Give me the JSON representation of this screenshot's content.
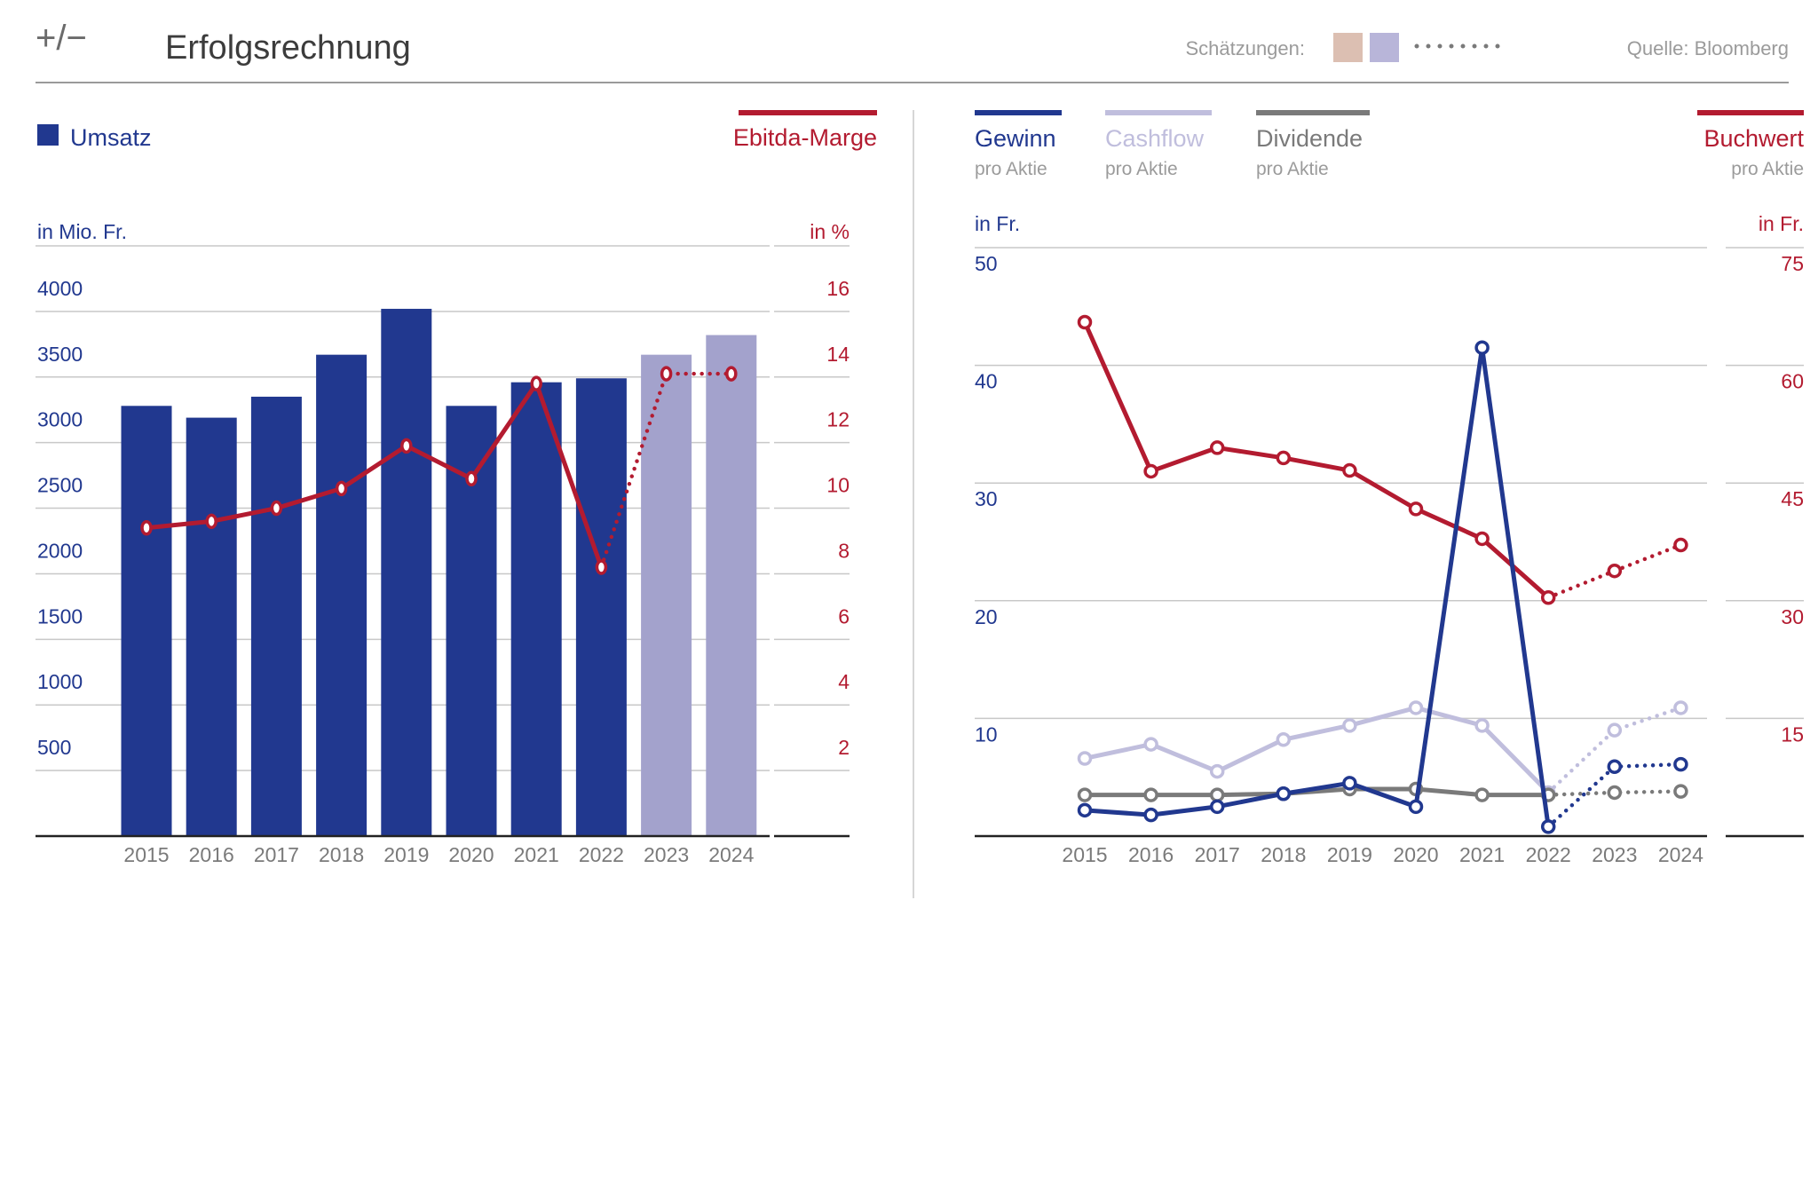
{
  "header": {
    "logo": "+/−",
    "title": "Erfolgsrechnung",
    "estimates_label": "Schätzungen:",
    "source": "Quelle: Bloomberg"
  },
  "colors": {
    "navy": "#21388f",
    "lavender": "#a3a2cc",
    "light_lavender": "#c0bedd",
    "red": "#b31b30",
    "gray": "#7a7a7a",
    "muted_text": "#9b9b9b",
    "gridline": "#c8c8c8",
    "axis": "#222222",
    "estimate_swatch_1": "#dcbfb2",
    "estimate_swatch_2": "#b8b5d9"
  },
  "left_chart": {
    "legend_left": "Umsatz",
    "legend_right": "Ebitda-Marge",
    "unit_left": "in Mio. Fr.",
    "unit_right": "in %"
  },
  "right_chart": {
    "legend": [
      {
        "name": "Gewinn",
        "sub": "pro Aktie"
      },
      {
        "name": "Cashflow",
        "sub": "pro Aktie"
      },
      {
        "name": "Dividende",
        "sub": "pro Aktie"
      },
      {
        "name": "Buchwert",
        "sub": "pro Aktie"
      }
    ],
    "unit_left": "in Fr.",
    "unit_right": "in Fr."
  },
  "chart_data": [
    {
      "type": "bar",
      "categories": [
        "2015",
        "2016",
        "2017",
        "2018",
        "2019",
        "2020",
        "2021",
        "2022",
        "2023",
        "2024"
      ],
      "estimate_from": "2023",
      "series": [
        {
          "name": "Umsatz",
          "axis": "left",
          "type": "bar",
          "values": [
            3280,
            3190,
            3350,
            3670,
            4020,
            3280,
            3460,
            3490,
            3670,
            3820
          ]
        },
        {
          "name": "Ebitda-Marge",
          "axis": "right",
          "type": "line",
          "values": [
            9.4,
            9.6,
            10.0,
            10.6,
            11.9,
            10.9,
            13.8,
            8.2,
            14.1,
            14.1
          ]
        }
      ],
      "y_left": {
        "ticks": [
          500,
          1000,
          1500,
          2000,
          2500,
          3000,
          3500,
          4000
        ],
        "range": [
          0,
          4500
        ]
      },
      "y_right": {
        "ticks": [
          2,
          4,
          6,
          8,
          10,
          12,
          14,
          16
        ],
        "range": [
          0,
          18
        ]
      }
    },
    {
      "type": "line",
      "x": [
        "2015",
        "2016",
        "2017",
        "2018",
        "2019",
        "2020",
        "2021",
        "2022",
        "2023",
        "2024"
      ],
      "estimate_from": "2023",
      "series": [
        {
          "name": "Gewinn",
          "axis": "left",
          "values": [
            2.2,
            1.8,
            2.5,
            3.6,
            4.5,
            2.5,
            41.5,
            0.8,
            5.9,
            6.1
          ]
        },
        {
          "name": "Cashflow",
          "axis": "left",
          "values": [
            6.6,
            7.8,
            5.5,
            8.2,
            9.4,
            10.9,
            9.4,
            3.7,
            9.0,
            10.9
          ]
        },
        {
          "name": "Dividende",
          "axis": "left",
          "values": [
            3.5,
            3.5,
            3.5,
            3.6,
            4.0,
            4.0,
            3.5,
            3.5,
            3.7,
            3.8
          ]
        },
        {
          "name": "Buchwert",
          "axis": "right",
          "values": [
            65.5,
            46.5,
            49.5,
            48.2,
            46.6,
            41.7,
            37.9,
            30.4,
            33.8,
            37.1
          ]
        }
      ],
      "y_left": {
        "ticks": [
          10,
          20,
          30,
          40,
          50
        ],
        "range": [
          0,
          50
        ]
      },
      "y_right": {
        "ticks": [
          15,
          30,
          45,
          60,
          75
        ],
        "range": [
          0,
          75
        ]
      }
    }
  ]
}
